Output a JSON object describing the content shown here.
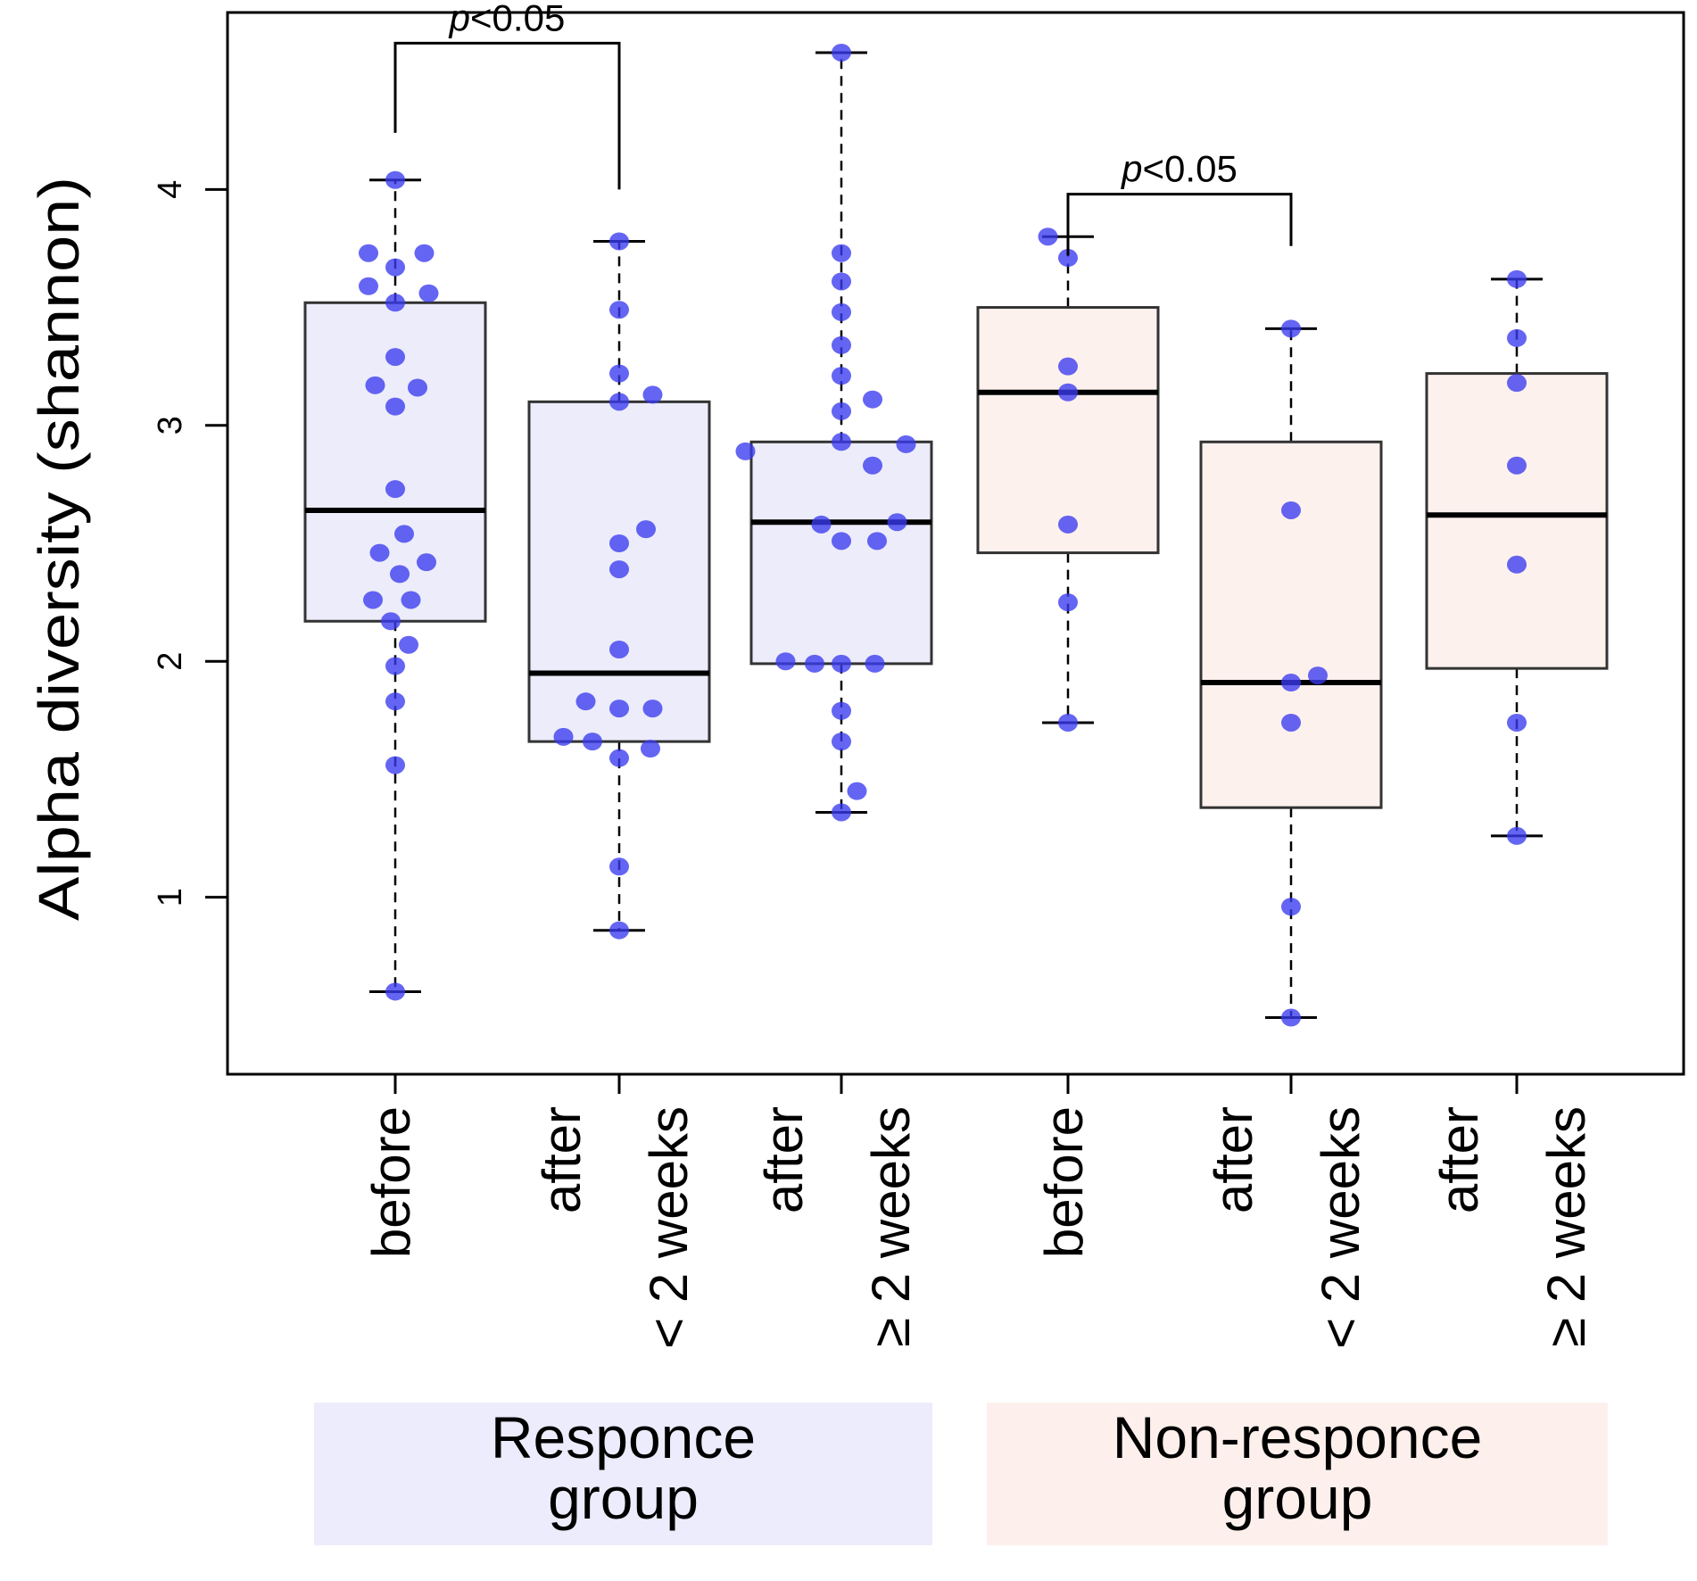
{
  "chart_data": {
    "type": "boxplot",
    "ylabel": "Alpha diversity (shannon)",
    "ylim": [
      0.25,
      4.75
    ],
    "yticks": [
      1,
      2,
      3,
      4
    ],
    "categories": [
      {
        "lines": [
          "before"
        ],
        "group": "response"
      },
      {
        "lines": [
          "after",
          "< 2 weeks"
        ],
        "group": "response"
      },
      {
        "lines": [
          "after",
          "≥ 2 weeks"
        ],
        "group": "response"
      },
      {
        "lines": [
          "before"
        ],
        "group": "non-response"
      },
      {
        "lines": [
          "after",
          "< 2 weeks"
        ],
        "group": "non-response"
      },
      {
        "lines": [
          "after",
          "≥ 2 weeks"
        ],
        "group": "non-response"
      }
    ],
    "boxes": [
      {
        "min": 0.6,
        "q1": 2.17,
        "median": 2.64,
        "q3": 3.52,
        "max": 4.04
      },
      {
        "min": 0.86,
        "q1": 1.66,
        "median": 1.95,
        "q3": 3.1,
        "max": 3.78
      },
      {
        "min": 1.36,
        "q1": 1.99,
        "median": 2.59,
        "q3": 2.93,
        "max": 4.58
      },
      {
        "min": 1.74,
        "q1": 2.46,
        "median": 3.14,
        "q3": 3.5,
        "max": 3.8
      },
      {
        "min": 0.49,
        "q1": 1.38,
        "median": 1.91,
        "q3": 2.93,
        "max": 3.41
      },
      {
        "min": 1.26,
        "q1": 1.97,
        "median": 2.62,
        "q3": 3.22,
        "max": 3.62
      }
    ],
    "points": [
      [
        {
          "dx": 0,
          "y": 4.04
        },
        {
          "dx": -0.12,
          "y": 3.73
        },
        {
          "dx": 0.13,
          "y": 3.73
        },
        {
          "dx": 0,
          "y": 3.67
        },
        {
          "dx": -0.12,
          "y": 3.59
        },
        {
          "dx": 0.15,
          "y": 3.56
        },
        {
          "dx": 0,
          "y": 3.52
        },
        {
          "dx": 0,
          "y": 3.29
        },
        {
          "dx": -0.09,
          "y": 3.17
        },
        {
          "dx": 0.1,
          "y": 3.16
        },
        {
          "dx": 0,
          "y": 3.08
        },
        {
          "dx": 0,
          "y": 2.73
        },
        {
          "dx": 0.04,
          "y": 2.54
        },
        {
          "dx": -0.07,
          "y": 2.46
        },
        {
          "dx": 0.14,
          "y": 2.42
        },
        {
          "dx": 0.02,
          "y": 2.37
        },
        {
          "dx": -0.1,
          "y": 2.26
        },
        {
          "dx": 0.07,
          "y": 2.26
        },
        {
          "dx": -0.02,
          "y": 2.17
        },
        {
          "dx": 0.06,
          "y": 2.07
        },
        {
          "dx": 0,
          "y": 1.98
        },
        {
          "dx": 0,
          "y": 1.83
        },
        {
          "dx": 0,
          "y": 1.56
        },
        {
          "dx": 0,
          "y": 0.6
        }
      ],
      [
        {
          "dx": 0,
          "y": 3.78
        },
        {
          "dx": 0,
          "y": 3.49
        },
        {
          "dx": 0,
          "y": 3.22
        },
        {
          "dx": 0.15,
          "y": 3.13
        },
        {
          "dx": 0,
          "y": 3.1
        },
        {
          "dx": 0.12,
          "y": 2.56
        },
        {
          "dx": 0,
          "y": 2.5
        },
        {
          "dx": 0,
          "y": 2.39
        },
        {
          "dx": 0,
          "y": 2.05
        },
        {
          "dx": -0.15,
          "y": 1.83
        },
        {
          "dx": 0,
          "y": 1.8
        },
        {
          "dx": 0.15,
          "y": 1.8
        },
        {
          "dx": -0.25,
          "y": 1.68
        },
        {
          "dx": -0.12,
          "y": 1.66
        },
        {
          "dx": 0.14,
          "y": 1.63
        },
        {
          "dx": 0,
          "y": 1.59
        },
        {
          "dx": 0,
          "y": 1.13
        },
        {
          "dx": 0,
          "y": 0.86
        }
      ],
      [
        {
          "dx": 0,
          "y": 4.58
        },
        {
          "dx": 0,
          "y": 3.73
        },
        {
          "dx": 0,
          "y": 3.61
        },
        {
          "dx": 0,
          "y": 3.48
        },
        {
          "dx": 0,
          "y": 3.34
        },
        {
          "dx": 0,
          "y": 3.21
        },
        {
          "dx": 0.14,
          "y": 3.11
        },
        {
          "dx": 0,
          "y": 3.06
        },
        {
          "dx": 0,
          "y": 2.93
        },
        {
          "dx": 0.29,
          "y": 2.92
        },
        {
          "dx": -0.43,
          "y": 2.89
        },
        {
          "dx": 0.14,
          "y": 2.83
        },
        {
          "dx": 0.25,
          "y": 2.59
        },
        {
          "dx": -0.09,
          "y": 2.58
        },
        {
          "dx": 0,
          "y": 2.51
        },
        {
          "dx": 0.16,
          "y": 2.51
        },
        {
          "dx": -0.25,
          "y": 2.0
        },
        {
          "dx": -0.12,
          "y": 1.99
        },
        {
          "dx": 0.15,
          "y": 1.99
        },
        {
          "dx": 0,
          "y": 1.99
        },
        {
          "dx": 0,
          "y": 1.79
        },
        {
          "dx": 0,
          "y": 1.66
        },
        {
          "dx": 0.07,
          "y": 1.45
        },
        {
          "dx": 0,
          "y": 1.36
        }
      ],
      [
        {
          "dx": -0.09,
          "y": 3.8
        },
        {
          "dx": 0,
          "y": 3.71
        },
        {
          "dx": 0,
          "y": 3.25
        },
        {
          "dx": 0,
          "y": 3.14
        },
        {
          "dx": 0,
          "y": 2.58
        },
        {
          "dx": 0,
          "y": 2.25
        },
        {
          "dx": 0,
          "y": 1.74
        }
      ],
      [
        {
          "dx": 0,
          "y": 3.41
        },
        {
          "dx": 0,
          "y": 2.64
        },
        {
          "dx": 0.12,
          "y": 1.94
        },
        {
          "dx": 0,
          "y": 1.91
        },
        {
          "dx": 0,
          "y": 1.74
        },
        {
          "dx": 0,
          "y": 0.96
        },
        {
          "dx": 0,
          "y": 0.49
        }
      ],
      [
        {
          "dx": 0,
          "y": 3.62
        },
        {
          "dx": 0,
          "y": 3.37
        },
        {
          "dx": 0,
          "y": 3.18
        },
        {
          "dx": 0,
          "y": 2.83
        },
        {
          "dx": 0,
          "y": 2.41
        },
        {
          "dx": 0,
          "y": 1.74
        },
        {
          "dx": 0,
          "y": 1.26
        }
      ]
    ],
    "significance": [
      {
        "from": 0,
        "to": 1,
        "y": 4.62,
        "left_tip": 4.24,
        "right_tip": 4.0,
        "p_italic": "p",
        "p_rest": "<0.05"
      },
      {
        "from": 3,
        "to": 4,
        "y": 3.98,
        "left_tip": 3.72,
        "right_tip": 3.76,
        "p_italic": "p",
        "p_rest": "<0.05"
      }
    ],
    "groups": [
      {
        "lines": [
          "Responce",
          "group"
        ],
        "from": 0,
        "to": 2,
        "color": "#ececfc"
      },
      {
        "lines": [
          "Non-responce",
          "group"
        ],
        "from": 3,
        "to": 5,
        "color": "#fdf0ec"
      }
    ],
    "colors": {
      "response_box": "#ececfb",
      "nonresponse_box": "#fdf1ee",
      "point": "#3a3af0",
      "axis": "#000000"
    }
  }
}
